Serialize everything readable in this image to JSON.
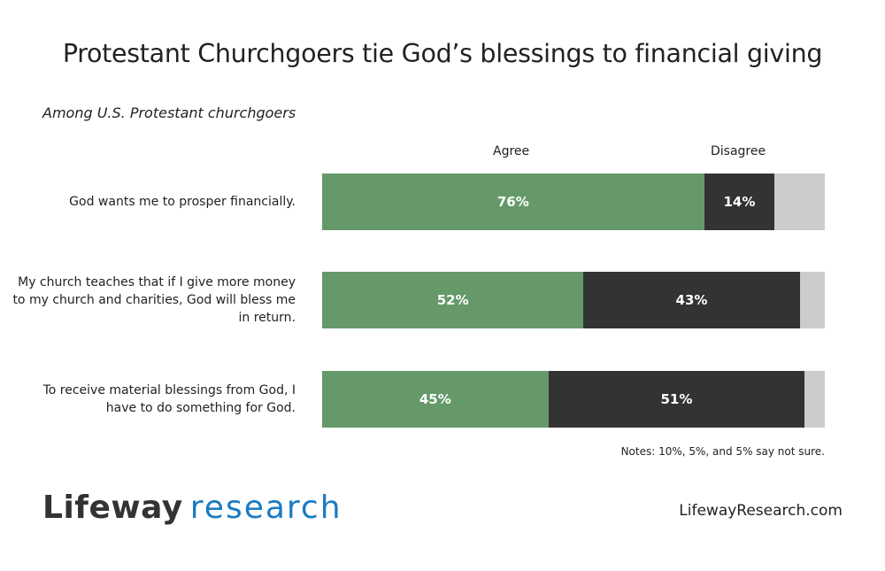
{
  "chart_data": {
    "type": "bar",
    "orientation": "horizontal-stacked",
    "title": "Protestant Churchgoers tie God’s blessings to financial giving",
    "subtitle": "Among U.S. Protestant churchgoers",
    "legend": [
      "Agree",
      "Disagree"
    ],
    "categories": [
      "God wants me to prosper financially.",
      "My church teaches that if I give more money to my church and charities, God will bless me in return.",
      "To receive material blessings from God, I have to do something for God."
    ],
    "series": [
      {
        "name": "Agree",
        "values": [
          76,
          52,
          45
        ],
        "color": "#65996a"
      },
      {
        "name": "Disagree",
        "values": [
          14,
          43,
          51
        ],
        "color": "#333333"
      },
      {
        "values": [
          10,
          5,
          5
        ],
        "color": "#cccccc"
      }
    ],
    "data_labels": [
      [
        "76%",
        "14%"
      ],
      [
        "52%",
        "43%"
      ],
      [
        "45%",
        "51%"
      ]
    ],
    "notes": "Notes: 10%, 5%, and 5% say not sure."
  },
  "footer": {
    "logo_part1": "Lifeway",
    "logo_part2": "research",
    "url": "LifewayResearch.com"
  }
}
